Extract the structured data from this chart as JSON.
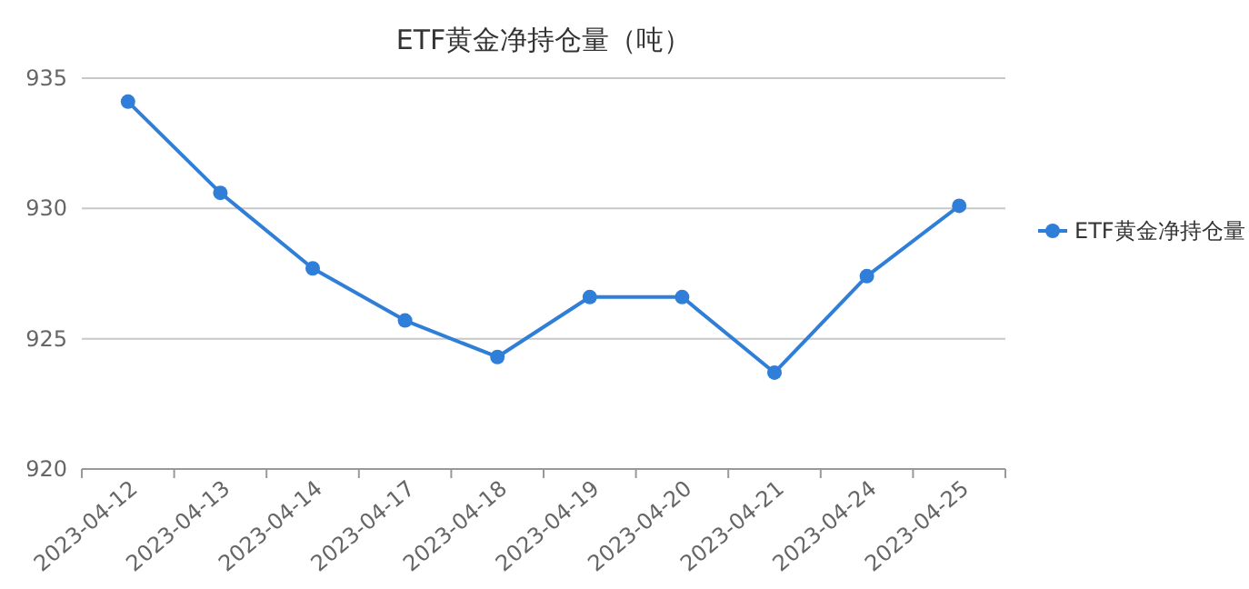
{
  "chart_data": {
    "type": "line",
    "title": "ETF黄金净持仓量（吨）",
    "categories": [
      "2023-04-12",
      "2023-04-13",
      "2023-04-14",
      "2023-04-17",
      "2023-04-18",
      "2023-04-19",
      "2023-04-20",
      "2023-04-21",
      "2023-04-24",
      "2023-04-25"
    ],
    "series": [
      {
        "name": "ETF黄金净持仓量",
        "color": "#2f7ed8",
        "values": [
          934.1,
          930.6,
          927.7,
          925.7,
          924.3,
          926.6,
          926.6,
          923.7,
          927.4,
          930.1
        ]
      }
    ],
    "ylim": [
      920,
      935
    ],
    "yticks": [
      920,
      925,
      930,
      935
    ],
    "grid": "y",
    "legend": "right",
    "marker": "circle"
  }
}
